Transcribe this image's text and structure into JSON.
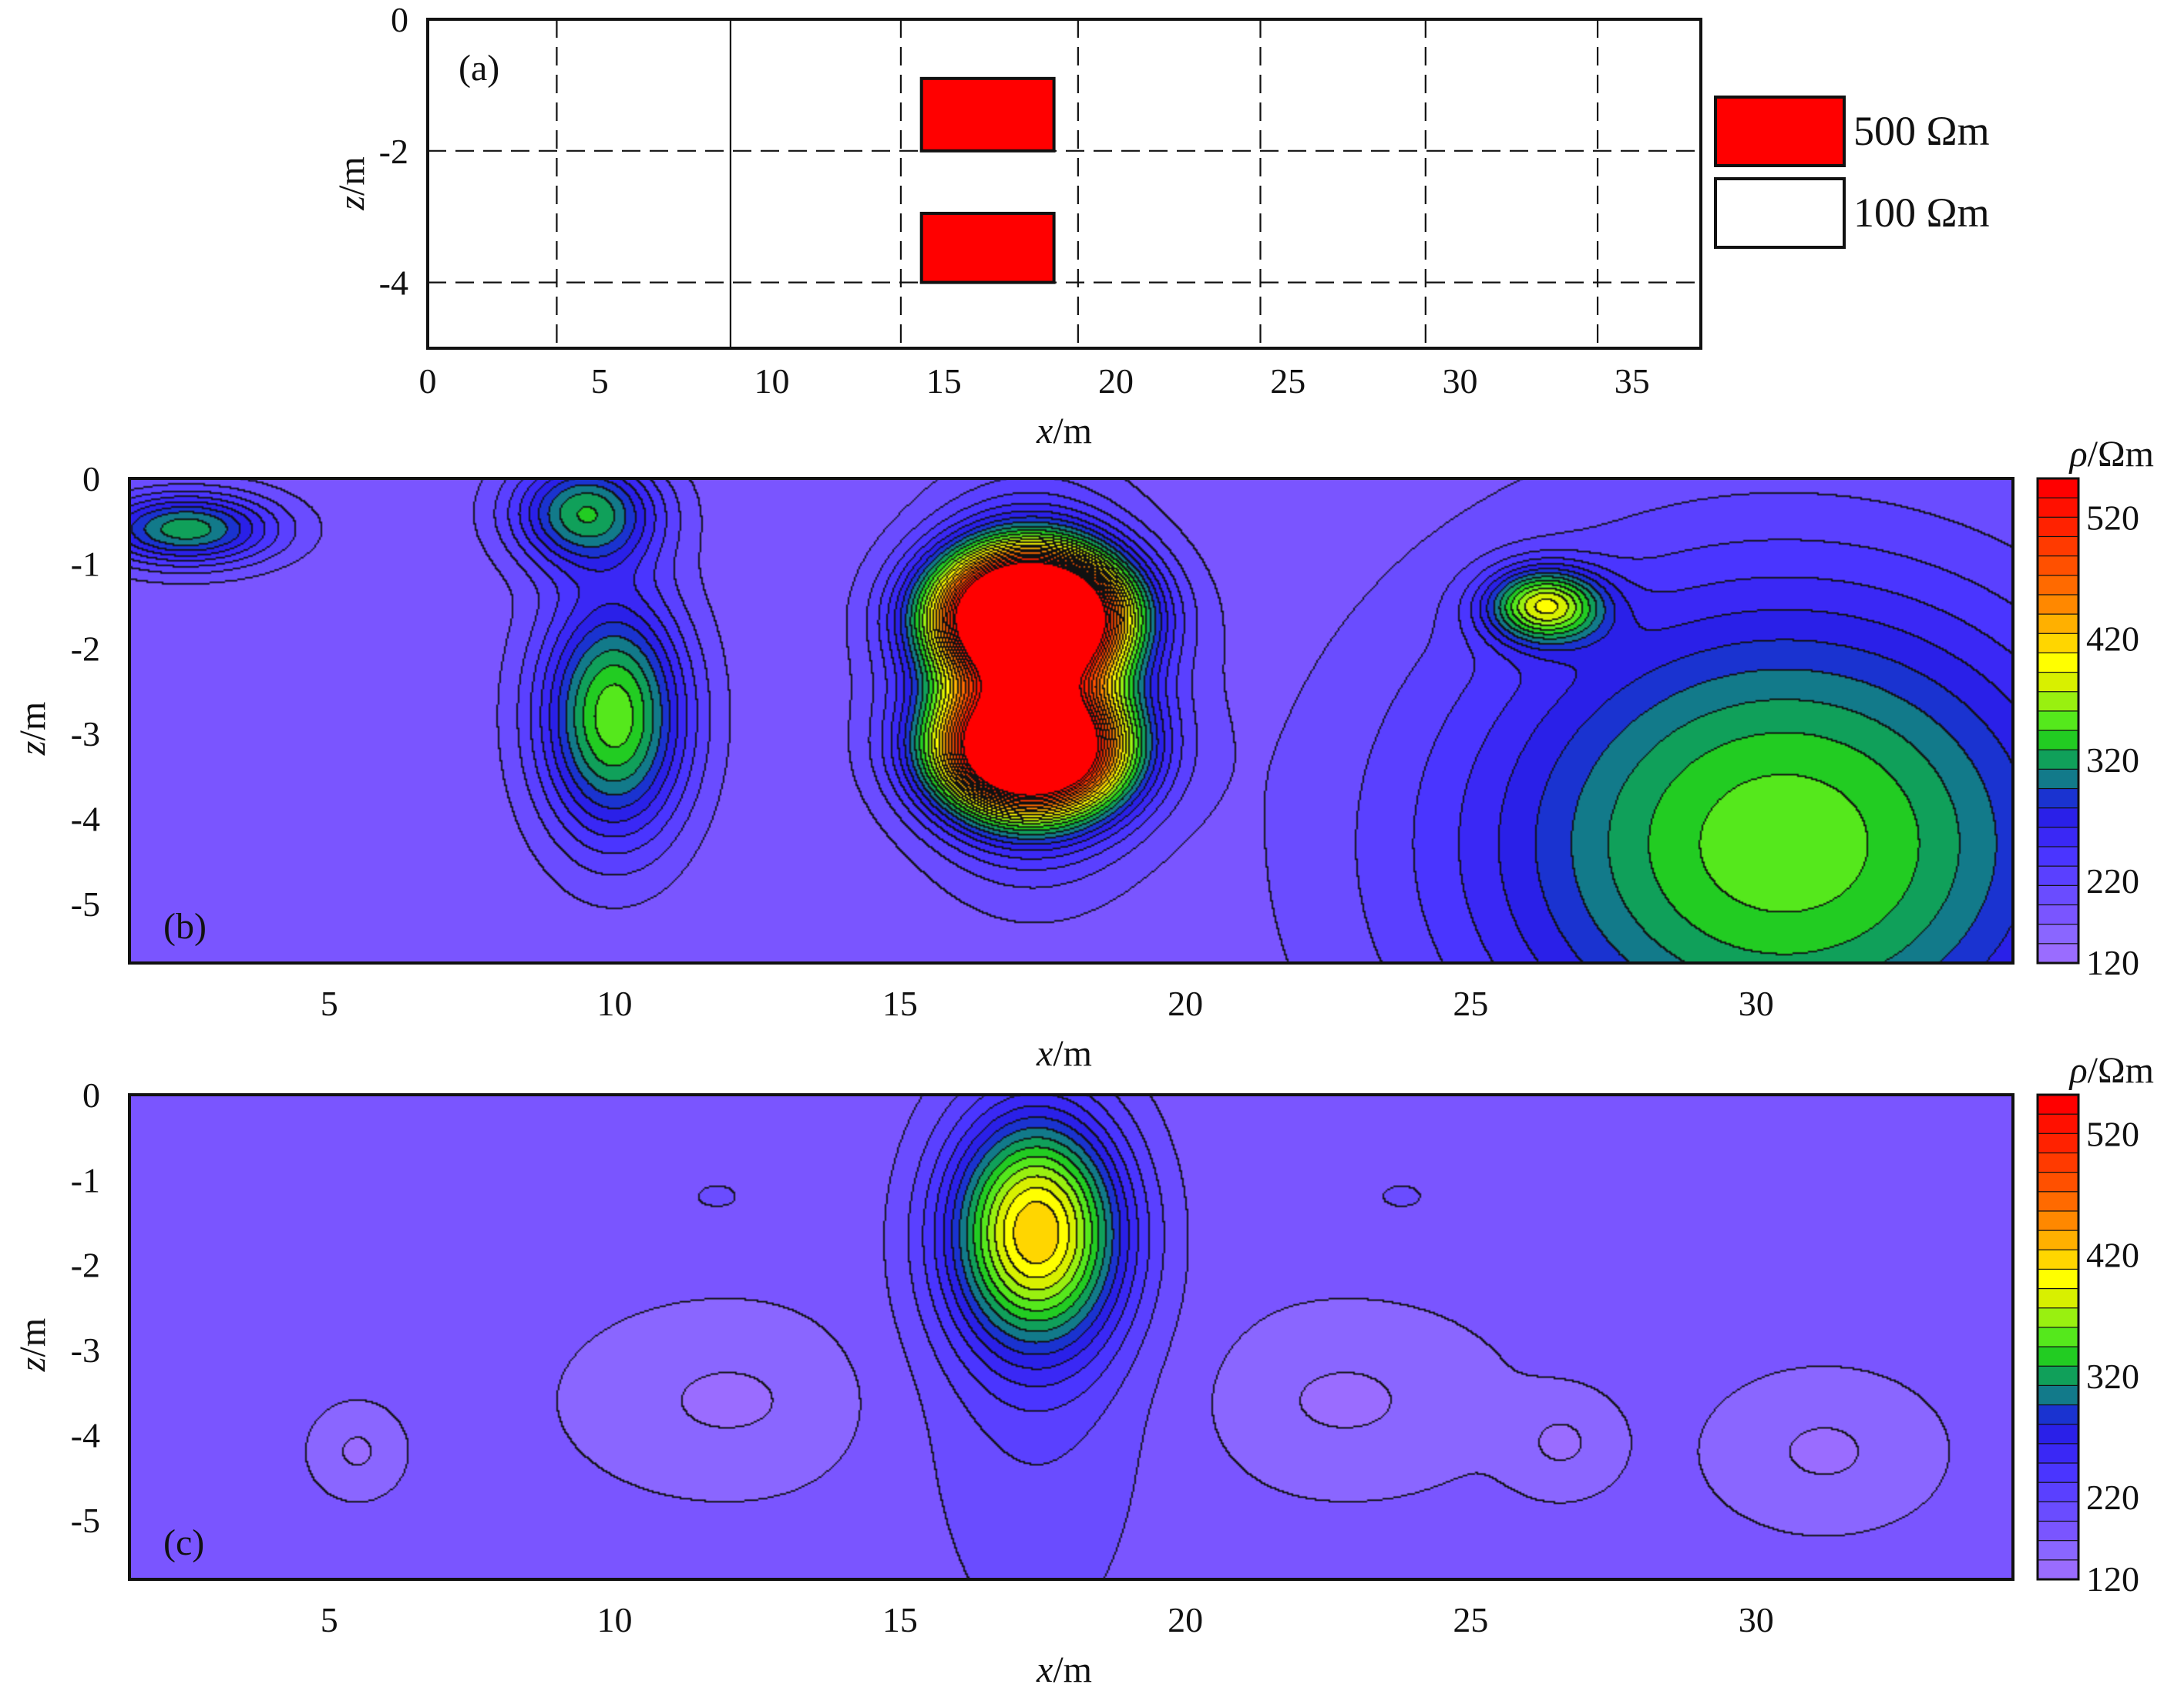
{
  "chart_data": [
    {
      "type": "diagram",
      "panel_label": "(a)",
      "xlabel_var": "x",
      "xlabel_unit": "/m",
      "ylabel_var": "z",
      "ylabel_unit": "/m",
      "xlim": [
        0,
        37
      ],
      "ylim": [
        -5,
        0
      ],
      "x_ticks": [
        0,
        5,
        10,
        15,
        20,
        25,
        30,
        35
      ],
      "x_tick_labels": [
        "0",
        "5",
        "10",
        "15",
        "20",
        "25",
        "30",
        "35"
      ],
      "y_ticks": [
        0,
        -2,
        -4
      ],
      "y_tick_labels": [
        "0",
        "-2",
        "-4"
      ],
      "dashed_x_lines": [
        3.75,
        13.75,
        18.9,
        24.2,
        29,
        34
      ],
      "solid_x_lines": [
        8.8
      ],
      "dashed_z_lines": [
        -2,
        -4
      ],
      "blocks": [
        {
          "x0": 14.35,
          "x1": 18.2,
          "z0": -0.9,
          "z1": -2,
          "resistivity": "500 Ωm"
        },
        {
          "x0": 14.35,
          "x1": 18.2,
          "z0": -2.95,
          "z1": -4,
          "resistivity": "500 Ωm"
        }
      ],
      "legend": [
        {
          "label": "500 Ωm",
          "color": "#ff0000"
        },
        {
          "label": "100 Ωm",
          "color": "#ffffff"
        }
      ]
    },
    {
      "type": "heatmap",
      "panel_label": "(b)",
      "xlabel_var": "x",
      "xlabel_unit": "/m",
      "ylabel_var": "z",
      "ylabel_unit": "/m",
      "xlim": [
        1.5,
        34.5
      ],
      "ylim": [
        -5.7,
        0
      ],
      "x_ticks": [
        5,
        10,
        15,
        20,
        25,
        30
      ],
      "x_tick_labels": [
        "5",
        "10",
        "15",
        "20",
        "25",
        "30"
      ],
      "y_ticks": [
        0,
        -1,
        -2,
        -3,
        -4,
        -5
      ],
      "y_tick_labels": [
        "0",
        "-1",
        "-2",
        "-3",
        "-4",
        "-5"
      ],
      "colorbar_title_var": "ρ",
      "colorbar_title_unit": "/Ωm",
      "colorbar_ticks": [
        "520",
        "420",
        "320",
        "220",
        "120"
      ],
      "background_rho": 155,
      "anomalies": [
        {
          "x": 17.3,
          "z": -1.6,
          "sx": 1.1,
          "sy": 0.5,
          "rho": 520
        },
        {
          "x": 17.3,
          "z": -3.2,
          "sx": 1.1,
          "sy": 0.5,
          "rho": 430
        },
        {
          "x": 17.3,
          "z": -2.4,
          "sx": 1.25,
          "sy": 1.2,
          "rho": 200
        },
        {
          "x": 30.5,
          "z": -4.3,
          "sx": 4,
          "sy": 2.2,
          "rho": 168
        },
        {
          "x": 10,
          "z": -2.8,
          "sx": 0.9,
          "sy": 1,
          "rho": 168
        },
        {
          "x": 26.3,
          "z": -1.5,
          "sx": 0.7,
          "sy": 0.3,
          "rho": 168
        },
        {
          "x": 9.5,
          "z": -0.4,
          "sx": 0.9,
          "sy": 0.45,
          "rho": 135
        },
        {
          "x": 2.5,
          "z": -0.6,
          "sx": 1.1,
          "sy": 0.3,
          "rho": 135
        }
      ]
    },
    {
      "type": "heatmap",
      "panel_label": "(c)",
      "xlabel_var": "x",
      "xlabel_unit": "/m",
      "ylabel_var": "z",
      "ylabel_unit": "/m",
      "xlim": [
        1.5,
        34.5
      ],
      "ylim": [
        -5.7,
        0
      ],
      "x_ticks": [
        5,
        10,
        15,
        20,
        25,
        30
      ],
      "x_tick_labels": [
        "5",
        "10",
        "15",
        "20",
        "25",
        "30"
      ],
      "y_ticks": [
        0,
        -1,
        -2,
        -3,
        -4,
        -5
      ],
      "y_tick_labels": [
        "0",
        "-1",
        "-2",
        "-3",
        "-4",
        "-5"
      ],
      "colorbar_title_var": "ρ",
      "colorbar_title_unit": "/Ωm",
      "colorbar_ticks": [
        "520",
        "420",
        "320",
        "220",
        "120"
      ],
      "background_rho": 155,
      "anomalies": [
        {
          "x": 17.4,
          "z": -1.6,
          "sx": 1.05,
          "sy": 0.95,
          "rho": 215
        },
        {
          "x": 17.4,
          "z": -3.4,
          "sx": 1.5,
          "sy": 2.4,
          "rho": 28
        },
        {
          "x": 12,
          "z": -3.6,
          "sx": 1.5,
          "sy": 0.6,
          "rho": -22
        },
        {
          "x": 22.8,
          "z": -3.6,
          "sx": 1.5,
          "sy": 0.6,
          "rho": -22
        },
        {
          "x": 31.2,
          "z": -4.2,
          "sx": 1.1,
          "sy": 0.5,
          "rho": -22
        },
        {
          "x": 26.6,
          "z": -4.1,
          "sx": 0.6,
          "sy": 0.35,
          "rho": -22
        },
        {
          "x": 5.5,
          "z": -4.2,
          "sx": 0.45,
          "sy": 0.3,
          "rho": -22
        },
        {
          "x": 11.8,
          "z": -1.2,
          "sx": 0.6,
          "sy": 0.22,
          "rho": 15
        },
        {
          "x": 23.8,
          "z": -1.2,
          "sx": 0.6,
          "sy": 0.22,
          "rho": 15
        }
      ]
    }
  ],
  "colorbar_colors": [
    "#ffffff",
    "#9a6cff",
    "#8a66ff",
    "#7a55ff",
    "#6a4cff",
    "#5a40ff",
    "#4a35ff",
    "#3a28f5",
    "#2a20e8",
    "#1a33d0",
    "#127a8a",
    "#10a05a",
    "#22cc22",
    "#55e81c",
    "#99f010",
    "#d8f000",
    "#ffff00",
    "#ffd600",
    "#ffb000",
    "#ff8800",
    "#ff6a00",
    "#ff5000",
    "#ff3a00",
    "#ff2200",
    "#ff1000",
    "#ff0000"
  ]
}
